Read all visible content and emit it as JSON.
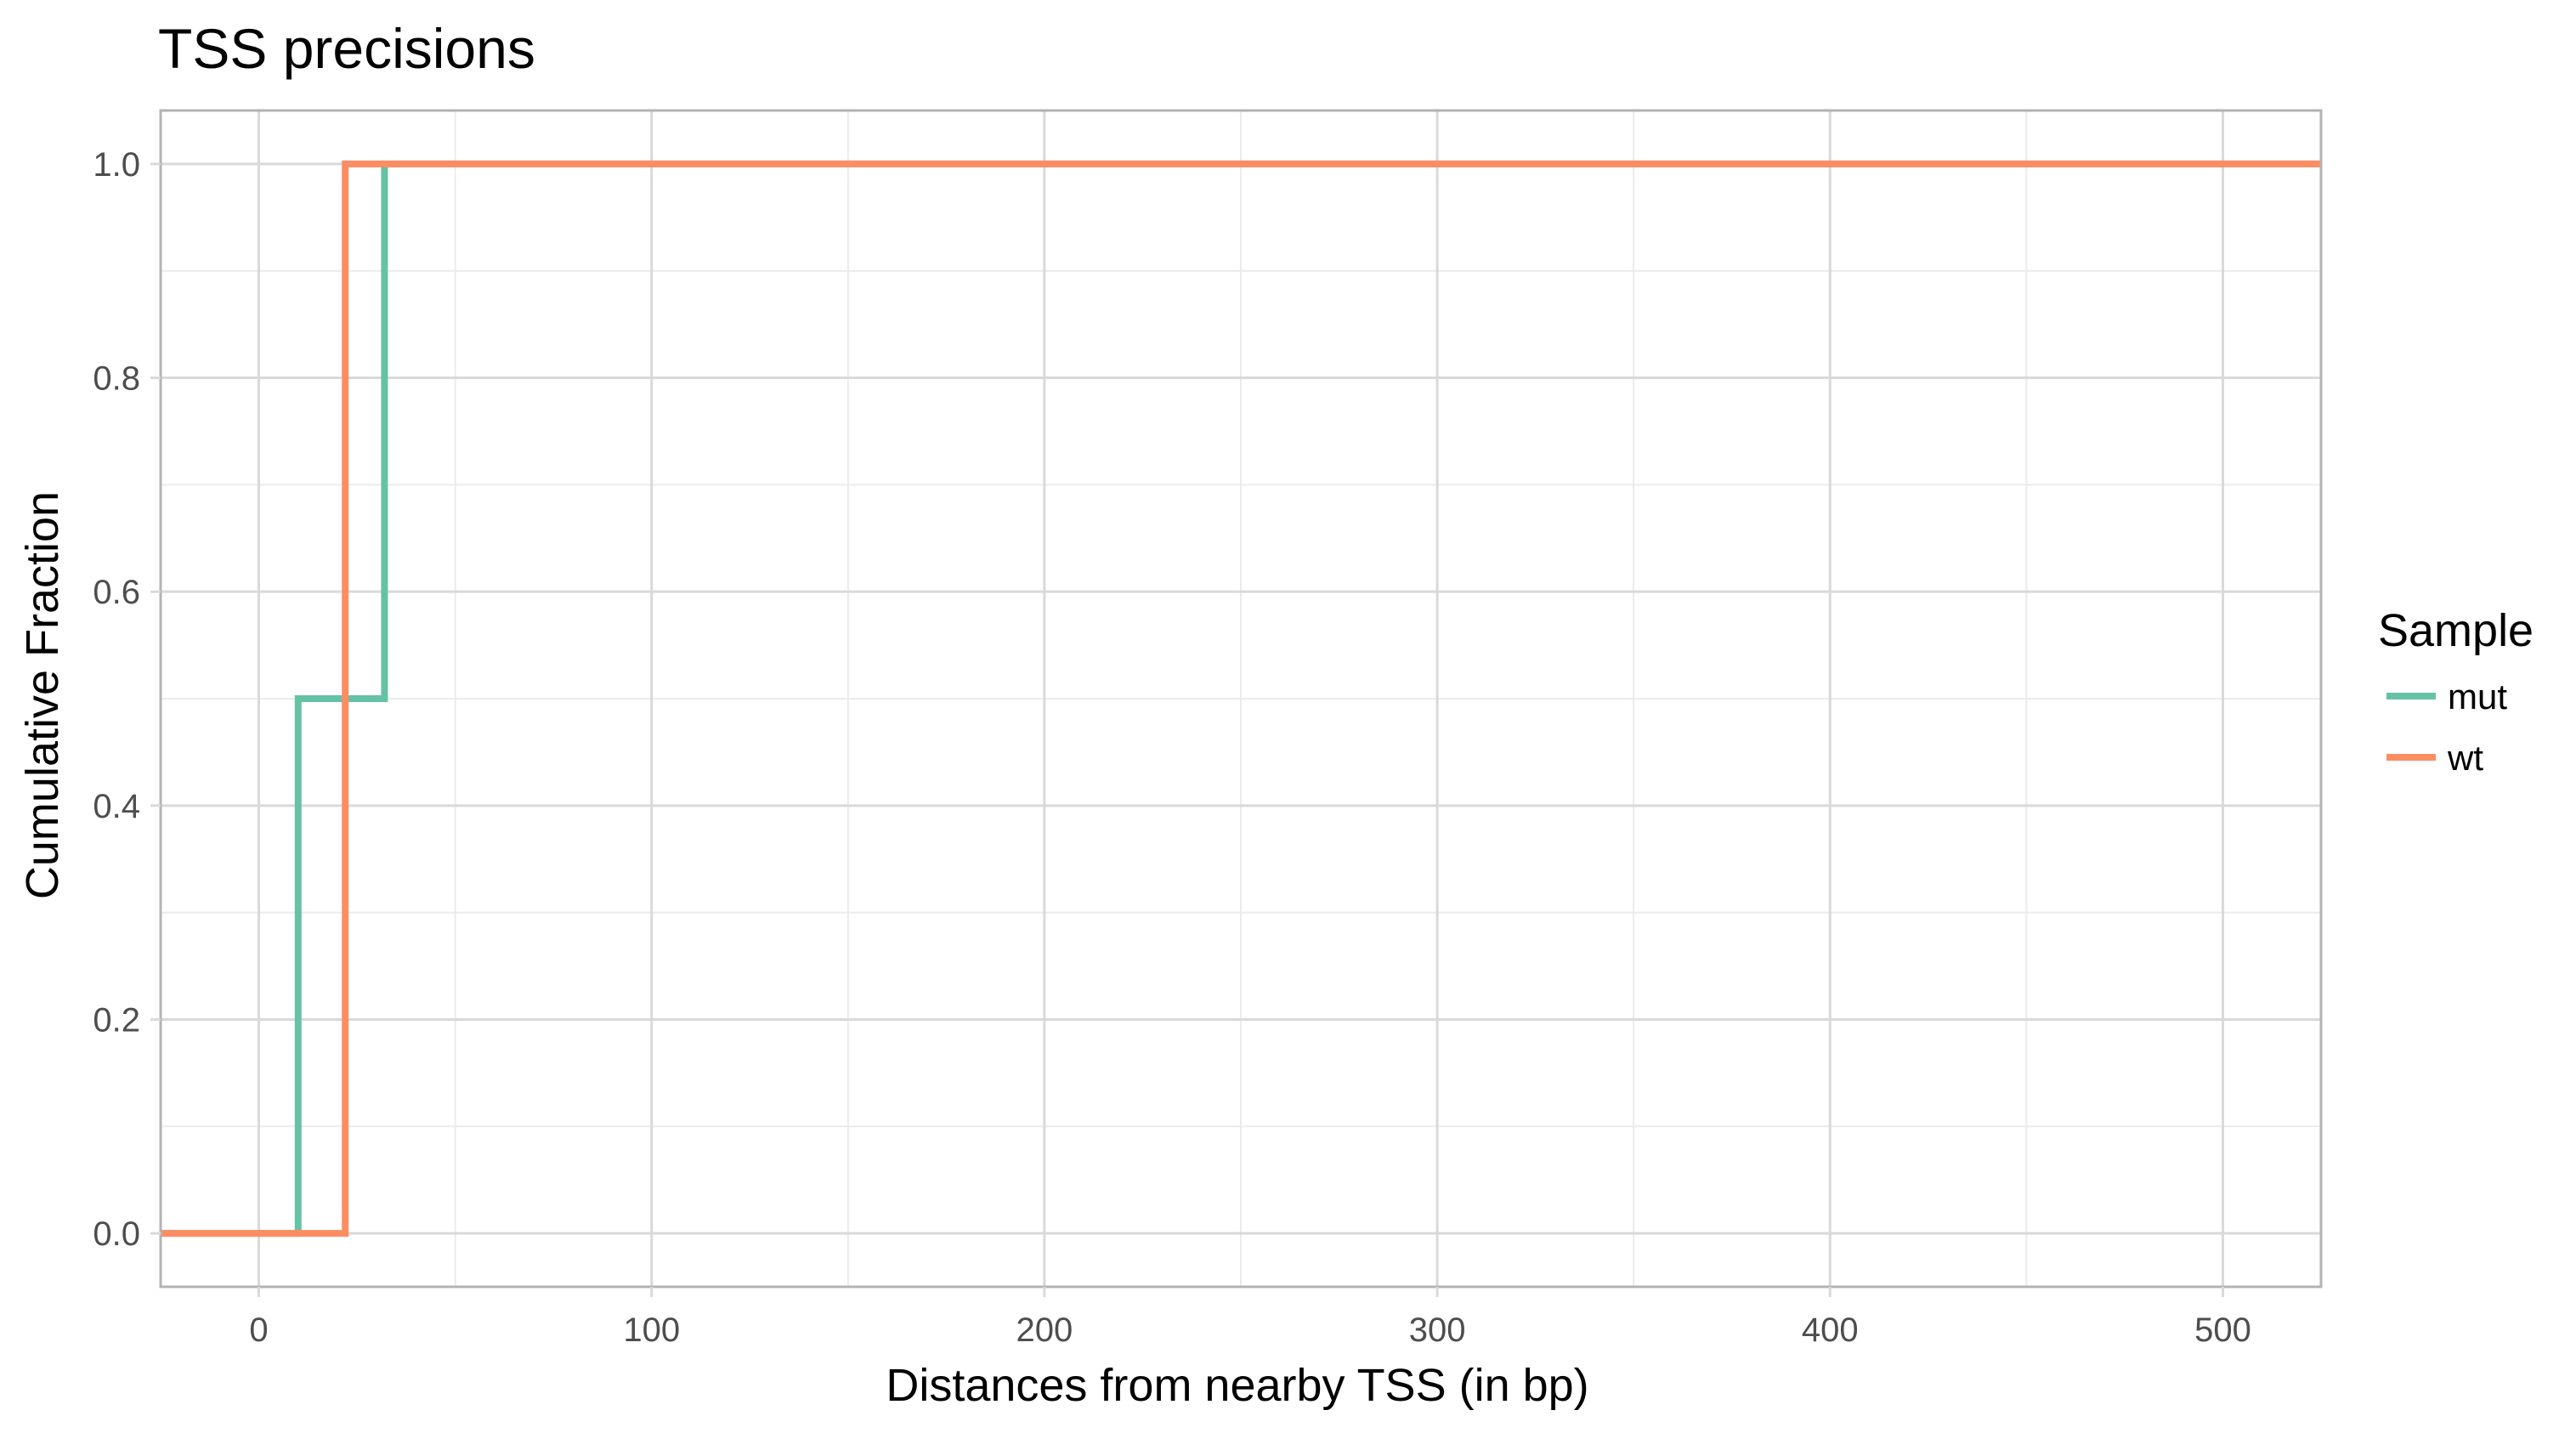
{
  "chart_data": {
    "type": "line",
    "title": "TSS precisions",
    "xlabel": "Distances from nearby TSS (in bp)",
    "ylabel": "Cumulative Fraction",
    "xlim": [
      -25,
      525
    ],
    "ylim": [
      -0.05,
      1.05
    ],
    "x_ticks": [
      0,
      100,
      200,
      300,
      400,
      500
    ],
    "x_tick_labels": [
      "0",
      "100",
      "200",
      "300",
      "400",
      "500"
    ],
    "x_minor_ticks": [
      50,
      150,
      250,
      350,
      450
    ],
    "y_ticks": [
      0.0,
      0.2,
      0.4,
      0.6,
      0.8,
      1.0
    ],
    "y_tick_labels": [
      "0.0",
      "0.2",
      "0.4",
      "0.6",
      "0.8",
      "1.0"
    ],
    "y_minor_ticks": [
      0.1,
      0.3,
      0.5,
      0.7,
      0.9
    ],
    "grid": true,
    "step": true,
    "legend": {
      "title": "Sample",
      "placement": "right"
    },
    "series": [
      {
        "name": "mut",
        "color": "#66c2a5",
        "x": [
          -25,
          10,
          10,
          32,
          32,
          525
        ],
        "y": [
          0.0,
          0.0,
          0.5,
          0.5,
          1.0,
          1.0
        ]
      },
      {
        "name": "wt",
        "color": "#fc8d62",
        "x": [
          -25,
          22,
          22,
          525
        ],
        "y": [
          0.0,
          0.0,
          1.0,
          1.0
        ]
      }
    ]
  },
  "colors": {
    "panel_border": "#b3b3b3",
    "grid_major": "#d9d9d9",
    "grid_minor": "#ebebeb",
    "tick_text": "#4d4d4d"
  }
}
